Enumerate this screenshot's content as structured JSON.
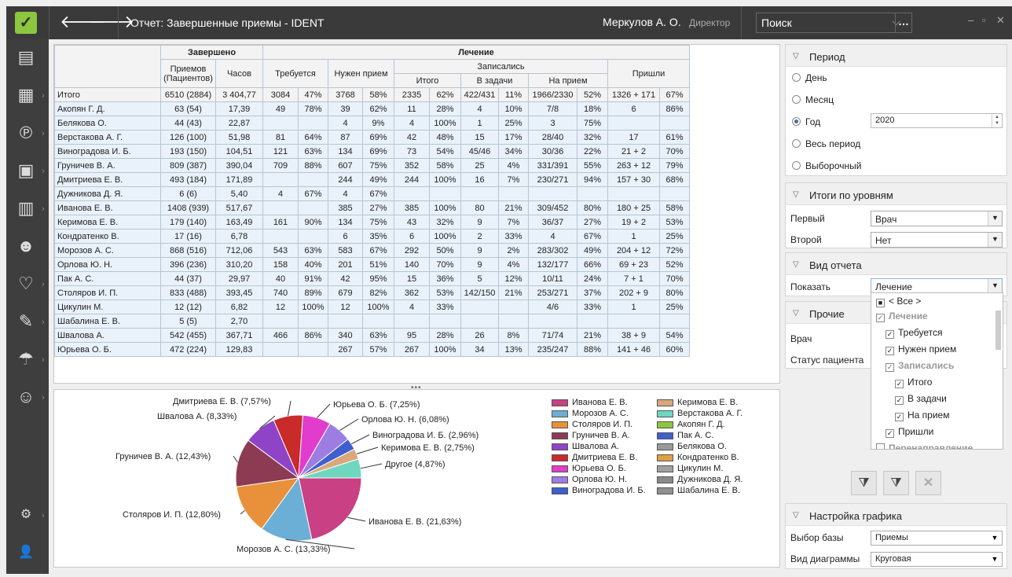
{
  "titlebar": {
    "title": "Отчет: Завершенные приемы - IDENT",
    "user": "Меркулов А. О.",
    "role": "Директор",
    "search_placeholder": "Поиск",
    "back_icon": "arrow-left-icon",
    "forward_icon": "arrow-right-icon"
  },
  "sidebar": {
    "icons": [
      "patient-card-icon",
      "calendar-icon",
      "payments-icon",
      "cashbox-icon",
      "reports-icon",
      "staff-icon",
      "tooth-icon",
      "syringe-icon",
      "insurance-icon",
      "finance-user-icon",
      "settings-icon",
      "user-icon"
    ]
  },
  "table": {
    "header": {
      "completed": "Завершено",
      "treatment": "Лечение",
      "visits": "Приемов (Пациентов)",
      "hours": "Часов",
      "required": "Требуется",
      "need_visit": "Нужен прием",
      "enrolled": "Записались",
      "came": "Пришли",
      "total": "Итого",
      "to_tasks": "В задачи",
      "to_visit": "На прием"
    },
    "rows": [
      [
        "Итого",
        "6510 (2884)",
        "3 404,77",
        "3084",
        "47%",
        "3768",
        "58%",
        "2335",
        "62%",
        "422/431",
        "11%",
        "1966/2330",
        "52%",
        "1326 + 171",
        "67%"
      ],
      [
        "Акопян Г. Д.",
        "63 (54)",
        "17,39",
        "49",
        "78%",
        "39",
        "62%",
        "11",
        "28%",
        "4",
        "10%",
        "7/8",
        "18%",
        "6",
        "86%"
      ],
      [
        "Белякова О.",
        "44 (43)",
        "22,87",
        "",
        "",
        "4",
        "9%",
        "4",
        "100%",
        "1",
        "25%",
        "3",
        "75%",
        "",
        ""
      ],
      [
        "Верстакова А. Г.",
        "126 (100)",
        "51,98",
        "81",
        "64%",
        "87",
        "69%",
        "42",
        "48%",
        "15",
        "17%",
        "28/40",
        "32%",
        "17",
        "61%"
      ],
      [
        "Виноградова И. Б.",
        "193 (150)",
        "104,51",
        "121",
        "63%",
        "134",
        "69%",
        "73",
        "54%",
        "45/46",
        "34%",
        "30/36",
        "22%",
        "21 + 2",
        "70%"
      ],
      [
        "Груничев В. А.",
        "809 (387)",
        "390,04",
        "709",
        "88%",
        "607",
        "75%",
        "352",
        "58%",
        "25",
        "4%",
        "331/391",
        "55%",
        "263 + 12",
        "79%"
      ],
      [
        "Дмитриева Е. В.",
        "493 (184)",
        "171,89",
        "",
        "",
        "244",
        "49%",
        "244",
        "100%",
        "16",
        "7%",
        "230/271",
        "94%",
        "157 + 30",
        "68%"
      ],
      [
        "Дужникова Д. Я.",
        "6 (6)",
        "5,40",
        "4",
        "67%",
        "4",
        "67%",
        "",
        "",
        "",
        "",
        "",
        "",
        "",
        ""
      ],
      [
        "Иванова Е. В.",
        "1408 (939)",
        "517,67",
        "",
        "",
        "385",
        "27%",
        "385",
        "100%",
        "80",
        "21%",
        "309/452",
        "80%",
        "180 + 25",
        "58%"
      ],
      [
        "Керимова Е. В.",
        "179 (140)",
        "163,49",
        "161",
        "90%",
        "134",
        "75%",
        "43",
        "32%",
        "9",
        "7%",
        "36/37",
        "27%",
        "19 + 2",
        "53%"
      ],
      [
        "Кондратенко В.",
        "17 (16)",
        "6,78",
        "",
        "",
        "6",
        "35%",
        "6",
        "100%",
        "2",
        "33%",
        "4",
        "67%",
        "1",
        "25%"
      ],
      [
        "Морозов А. С.",
        "868 (516)",
        "712,06",
        "543",
        "63%",
        "583",
        "67%",
        "292",
        "50%",
        "9",
        "2%",
        "283/302",
        "49%",
        "204 + 12",
        "72%"
      ],
      [
        "Орлова Ю. Н.",
        "396 (236)",
        "310,20",
        "158",
        "40%",
        "201",
        "51%",
        "140",
        "70%",
        "9",
        "4%",
        "132/177",
        "66%",
        "69 + 23",
        "52%"
      ],
      [
        "Пак А. С.",
        "44 (37)",
        "29,97",
        "40",
        "91%",
        "42",
        "95%",
        "15",
        "36%",
        "5",
        "12%",
        "10/11",
        "24%",
        "7 + 1",
        "70%"
      ],
      [
        "Столяров И. П.",
        "833 (488)",
        "393,45",
        "740",
        "89%",
        "679",
        "82%",
        "362",
        "53%",
        "142/150",
        "21%",
        "253/271",
        "37%",
        "202 + 9",
        "80%"
      ],
      [
        "Цикулин М.",
        "12 (12)",
        "6,82",
        "12",
        "100%",
        "12",
        "100%",
        "4",
        "33%",
        "",
        "",
        "4/6",
        "33%",
        "1",
        "25%"
      ],
      [
        "Шабалина Е. В.",
        "5 (5)",
        "2,70",
        "",
        "",
        "",
        "",
        "",
        "",
        "",
        "",
        "",
        "",
        "",
        ""
      ],
      [
        "Швалова А.",
        "542 (455)",
        "367,71",
        "466",
        "86%",
        "340",
        "63%",
        "95",
        "28%",
        "26",
        "8%",
        "71/74",
        "21%",
        "38 + 9",
        "54%"
      ],
      [
        "Юрьева О. Б.",
        "472 (224)",
        "129,83",
        "",
        "",
        "267",
        "57%",
        "267",
        "100%",
        "34",
        "13%",
        "235/247",
        "88%",
        "141 + 46",
        "60%"
      ]
    ]
  },
  "chart_data": {
    "type": "pie",
    "slices": [
      {
        "label": "Иванова Е. В. (21,63%)",
        "value": 21.63,
        "color": "#c94084"
      },
      {
        "label": "Морозов А. С. (13,33%)",
        "value": 13.33,
        "color": "#6baed6"
      },
      {
        "label": "Столяров И. П. (12,80%)",
        "value": 12.8,
        "color": "#e8913a"
      },
      {
        "label": "Груничев В. А. (12,43%)",
        "value": 12.43,
        "color": "#8c3b52"
      },
      {
        "label": "Швалова А. (8,33%)",
        "value": 8.33,
        "color": "#8f44c7"
      },
      {
        "label": "Дмитриева Е. В. (7,57%)",
        "value": 7.57,
        "color": "#c92a2a"
      },
      {
        "label": "Юрьева О. Б. (7,25%)",
        "value": 7.25,
        "color": "#e23ccc"
      },
      {
        "label": "Орлова Ю. Н. (6,08%)",
        "value": 6.08,
        "color": "#9e7de3"
      },
      {
        "label": "Виноградова И. Б. (2,96%)",
        "value": 2.96,
        "color": "#3f5fcf"
      },
      {
        "label": "Керимова Е. В. (2,75%)",
        "value": 2.75,
        "color": "#d9a87a"
      },
      {
        "label": "Другое (4,87%)",
        "value": 4.87,
        "color": "#6fd6c0"
      }
    ],
    "legend": [
      {
        "name": "Иванова Е. В.",
        "color": "#c94084"
      },
      {
        "name": "Морозов А. С.",
        "color": "#6baed6"
      },
      {
        "name": "Столяров И. П.",
        "color": "#e8913a"
      },
      {
        "name": "Груничев В. А.",
        "color": "#8c3b52"
      },
      {
        "name": "Швалова А.",
        "color": "#8f44c7"
      },
      {
        "name": "Дмитриева Е. В.",
        "color": "#c92a2a"
      },
      {
        "name": "Юрьева О. Б.",
        "color": "#e23ccc"
      },
      {
        "name": "Орлова Ю. Н.",
        "color": "#9e7de3"
      },
      {
        "name": "Виноградова И. Б.",
        "color": "#3f5fcf"
      },
      {
        "name": "Керимова Е. В.",
        "color": "#d9a87a"
      },
      {
        "name": "Верстакова А. Г.",
        "color": "#6fd6c0"
      },
      {
        "name": "Акопян Г. Д.",
        "color": "#8dc63f"
      },
      {
        "name": "Пак А. С.",
        "color": "#3f5fcf"
      },
      {
        "name": "Белякова О.",
        "color": "#9a9a9a"
      },
      {
        "name": "Кондратенко В.",
        "color": "#e0a040"
      },
      {
        "name": "Цикулин М.",
        "color": "#a0a0a0"
      },
      {
        "name": "Дужникова Д. Я.",
        "color": "#8a8a8a"
      },
      {
        "name": "Шабалина Е. В.",
        "color": "#909090"
      }
    ]
  },
  "right": {
    "period": {
      "title": "Период",
      "options": [
        "День",
        "Месяц",
        "Год",
        "Весь период",
        "Выборочный"
      ],
      "selected": "Год",
      "year": "2020"
    },
    "levels": {
      "title": "Итоги по уровням",
      "first_label": "Первый",
      "first_value": "Врач",
      "second_label": "Второй",
      "second_value": "Нет"
    },
    "view": {
      "title": "Вид отчета",
      "show_label": "Показать",
      "show_value": "Лечение"
    },
    "other": {
      "title": "Прочие",
      "doctor_label": "Врач",
      "status_label": "Статус пациента"
    },
    "dropdown": [
      "< Все >",
      "Лечение",
      "Требуется",
      "Нужен прием",
      "Записались",
      "Итого",
      "В задачи",
      "На прием",
      "Пришли",
      "Перенаправление"
    ],
    "chart_settings": {
      "title": "Настройка графика",
      "base_label": "Выбор базы",
      "base_value": "Приемы",
      "type_label": "Вид диаграммы",
      "type_value": "Круговая"
    }
  }
}
